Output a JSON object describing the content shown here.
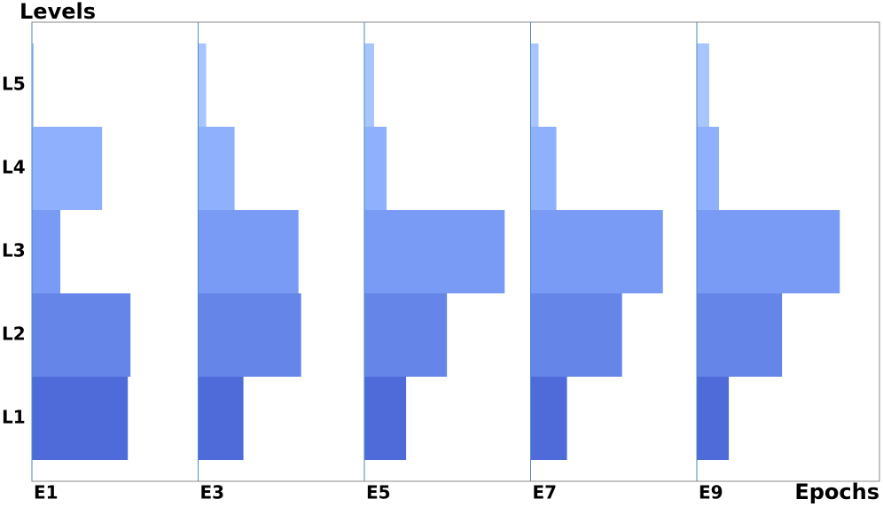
{
  "chart_data": {
    "type": "bar",
    "orientation": "horizontal-groups",
    "x_label": "Epochs",
    "y_label": "Levels",
    "categories": [
      "E1",
      "E3",
      "E5",
      "E7",
      "E9"
    ],
    "series": [
      {
        "name": "L1",
        "color": "#4f6bd9",
        "values": [
          108,
          51,
          47,
          41,
          36
        ]
      },
      {
        "name": "L2",
        "color": "#6585e8",
        "values": [
          111,
          116,
          93,
          103,
          96
        ]
      },
      {
        "name": "L3",
        "color": "#7a9bf5",
        "values": [
          32,
          113,
          158,
          149,
          161
        ]
      },
      {
        "name": "L4",
        "color": "#8fb0fc",
        "values": [
          79,
          41,
          25,
          29,
          25
        ]
      },
      {
        "name": "L5",
        "color": "#a9c5fd",
        "values": [
          2,
          9,
          11,
          9,
          14
        ]
      }
    ]
  }
}
